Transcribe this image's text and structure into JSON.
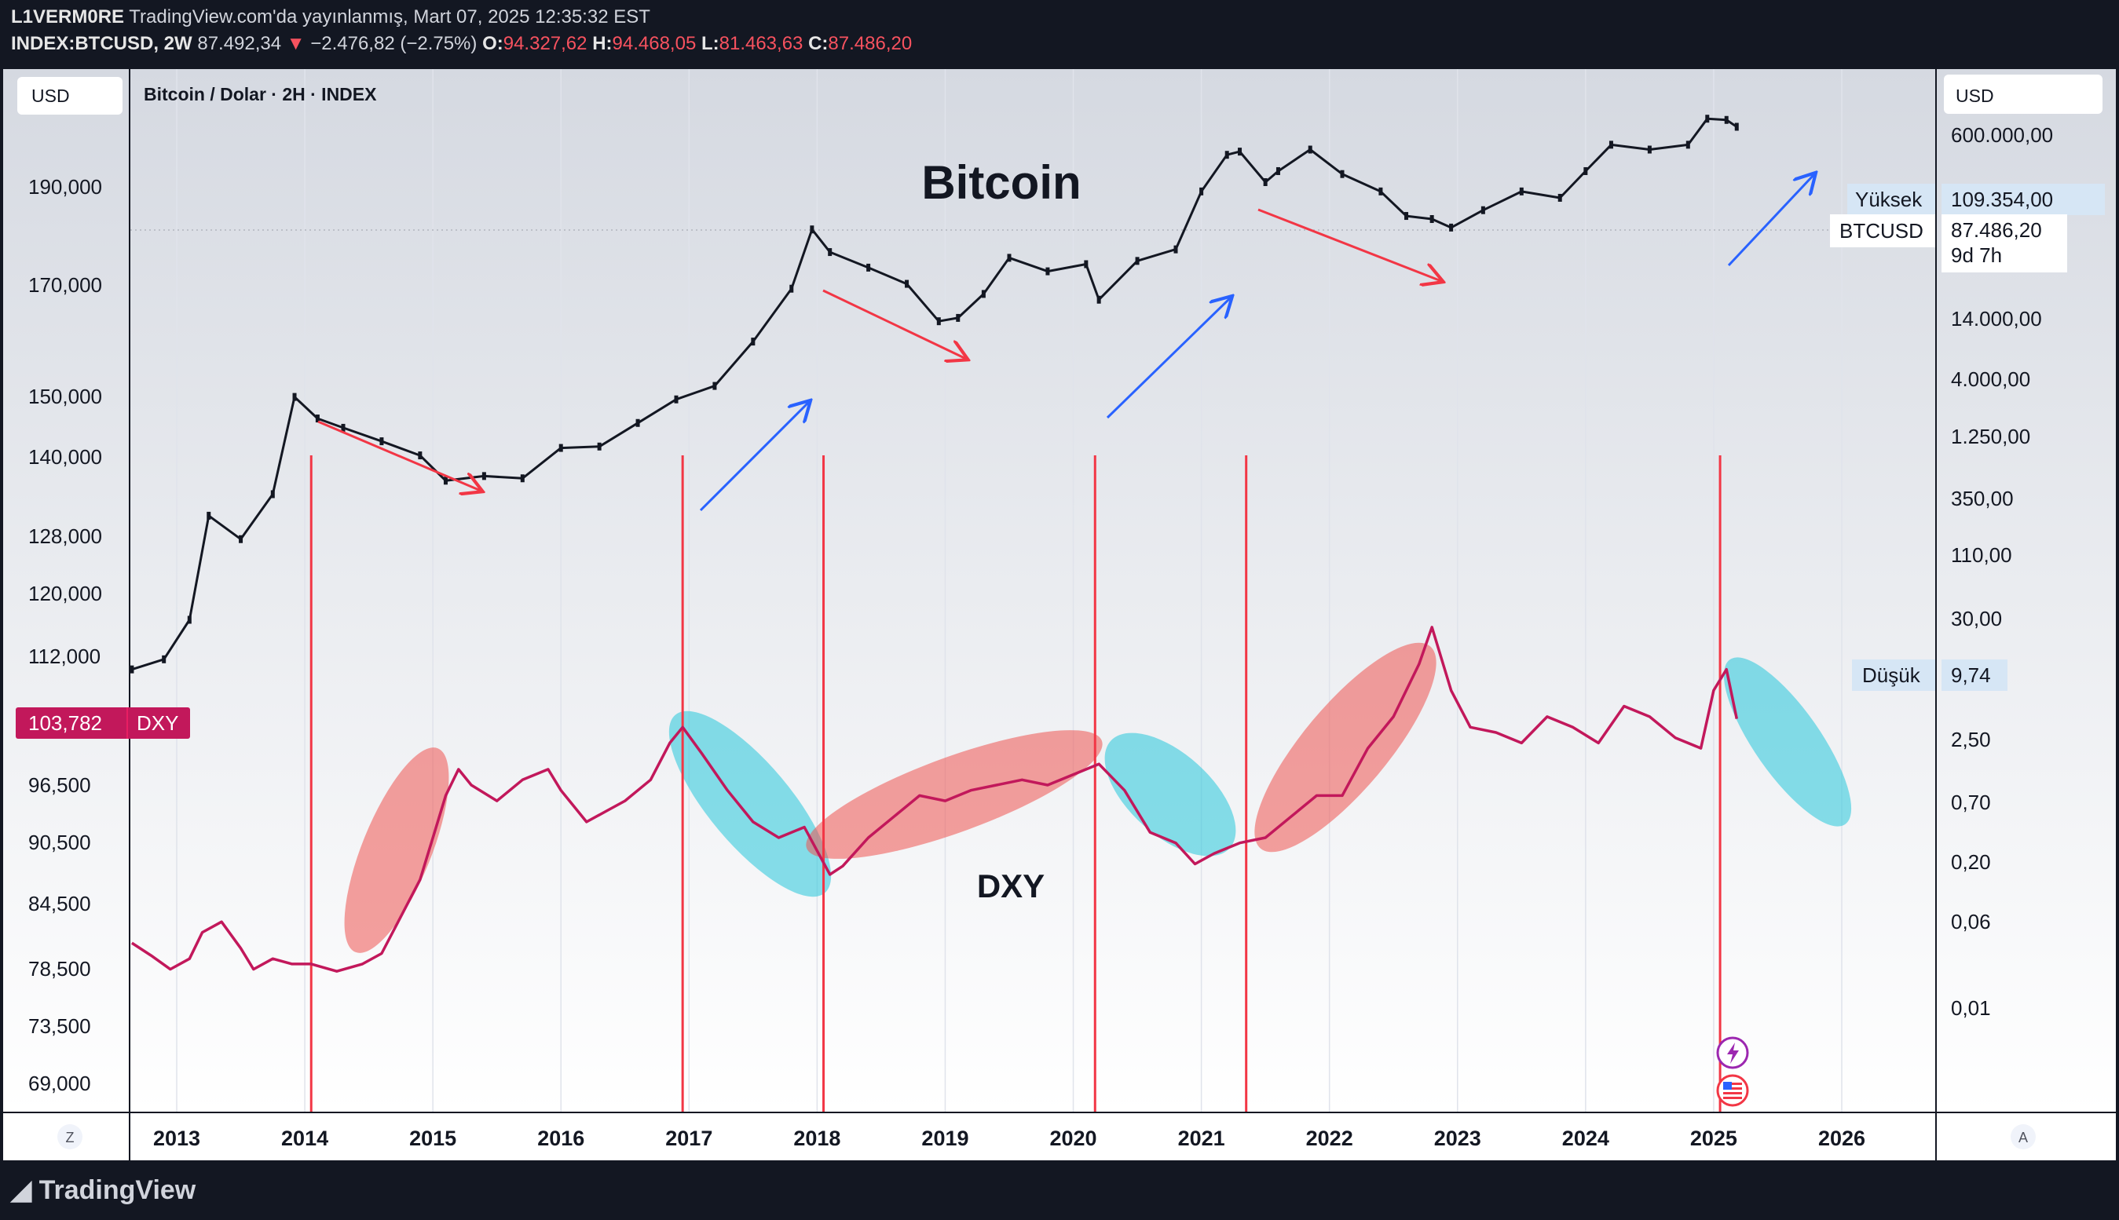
{
  "header": {
    "author": "L1VERM0RE",
    "published_text": "TradingView.com'da yayınlanmış, Mart 07, 2025 12:35:32 EST",
    "symbol": "INDEX:BTCUSD, 2W",
    "last": "87.492,34",
    "change_arrow": "▼",
    "change": "−2.476,82 (−2.75%)",
    "o_label": "O:",
    "o_value": "94.327,62",
    "h_label": "H:",
    "h_value": "94.468,05",
    "l_label": "L:",
    "l_value": "81.463,63",
    "c_label": "C:",
    "c_value": "87.486,20"
  },
  "chart_title_bar": "Bitcoin / Dolar · 2H · INDEX",
  "left_currency": "USD",
  "right_currency": "USD",
  "corner_left": "Z",
  "corner_right": "A",
  "branding": "TradingView",
  "colors": {
    "panel_bg": "#131722",
    "plot_bg_top": "#d5d9e1",
    "plot_bg_bottom": "#ffffff",
    "dxy": "#c2185b",
    "arrow_red": "#f23645",
    "arrow_blue": "#2962ff",
    "vline": "#f23645",
    "ellipse_red": "rgba(239,83,80,0.55)",
    "ellipse_cyan": "rgba(38,198,218,0.55)"
  },
  "chart_data": {
    "type": "line",
    "annotations": {
      "bitcoin": "Bitcoin",
      "dxy": "DXY"
    },
    "x_ticks": [
      "2013",
      "2014",
      "2015",
      "2016",
      "2017",
      "2018",
      "2019",
      "2020",
      "2021",
      "2022",
      "2023",
      "2024",
      "2025",
      "2026"
    ],
    "left_axis_ticks": [
      "190,000",
      "170,000",
      "150,000",
      "140,000",
      "128,000",
      "120,000",
      "112,000",
      "96,500",
      "90,500",
      "84,500",
      "78,500",
      "73,500",
      "69,000"
    ],
    "right_axis_ticks": [
      "600.000,00",
      "14.000,00",
      "4.000,00",
      "1.250,00",
      "350,00",
      "110,00",
      "30,00",
      "2,50",
      "0,70",
      "0,20",
      "0,06",
      "0,01"
    ],
    "dxy_badge": {
      "value": "103,782",
      "label": "DXY"
    },
    "high_label": {
      "text": "Yüksek",
      "value": "109.354,00"
    },
    "btc_label": {
      "symbol": "BTCUSD",
      "value": "87.486,20",
      "countdown": "9d 7h"
    },
    "low_label": {
      "text": "Düşük",
      "value": "9,74"
    },
    "series": [
      {
        "name": "BTCUSD",
        "x": [
          2012.65,
          2012.9,
          2013.1,
          2013.25,
          2013.5,
          2013.75,
          2013.92,
          2014.1,
          2014.3,
          2014.6,
          2014.9,
          2015.1,
          2015.4,
          2015.7,
          2016.0,
          2016.3,
          2016.6,
          2016.9,
          2017.2,
          2017.5,
          2017.8,
          2017.96,
          2018.1,
          2018.4,
          2018.7,
          2018.95,
          2019.1,
          2019.3,
          2019.5,
          2019.8,
          2020.1,
          2020.2,
          2020.5,
          2020.8,
          2021.0,
          2021.2,
          2021.3,
          2021.5,
          2021.6,
          2021.85,
          2022.1,
          2022.4,
          2022.6,
          2022.8,
          2022.95,
          2023.2,
          2023.5,
          2023.8,
          2024.0,
          2024.2,
          2024.5,
          2024.8,
          2024.95,
          2025.1,
          2025.18
        ],
        "y": [
          11,
          13,
          25,
          140,
          95,
          200,
          1000,
          700,
          600,
          480,
          380,
          250,
          270,
          260,
          430,
          440,
          650,
          960,
          1200,
          2500,
          6000,
          16000,
          11000,
          8500,
          6500,
          3500,
          3700,
          5500,
          10000,
          8000,
          9000,
          5000,
          9500,
          11500,
          30000,
          55000,
          58000,
          35000,
          42000,
          60000,
          40000,
          30000,
          20000,
          19000,
          16500,
          22000,
          30000,
          27000,
          42000,
          65000,
          60000,
          65000,
          100000,
          98000,
          87486
        ]
      },
      {
        "name": "DXY",
        "x": [
          2012.65,
          2012.8,
          2012.95,
          2013.1,
          2013.2,
          2013.35,
          2013.5,
          2013.6,
          2013.75,
          2013.9,
          2014.05,
          2014.25,
          2014.45,
          2014.6,
          2014.75,
          2014.9,
          2015.0,
          2015.1,
          2015.2,
          2015.3,
          2015.5,
          2015.7,
          2015.9,
          2016.0,
          2016.2,
          2016.35,
          2016.5,
          2016.7,
          2016.85,
          2016.95,
          2017.1,
          2017.3,
          2017.5,
          2017.7,
          2017.9,
          2018.1,
          2018.2,
          2018.4,
          2018.6,
          2018.8,
          2019.0,
          2019.2,
          2019.4,
          2019.6,
          2019.8,
          2020.0,
          2020.2,
          2020.4,
          2020.6,
          2020.8,
          2020.95,
          2021.1,
          2021.3,
          2021.5,
          2021.7,
          2021.9,
          2022.1,
          2022.3,
          2022.5,
          2022.7,
          2022.8,
          2022.95,
          2023.1,
          2023.3,
          2023.5,
          2023.7,
          2023.9,
          2024.1,
          2024.3,
          2024.5,
          2024.7,
          2024.9,
          2025.0,
          2025.1,
          2025.18
        ],
        "y": [
          82.5,
          81.3,
          80.0,
          81.0,
          83.5,
          84.5,
          82.0,
          80.0,
          81.0,
          80.5,
          80.5,
          79.8,
          80.5,
          81.5,
          85.0,
          88.5,
          92.5,
          96.5,
          99.0,
          97.5,
          96.0,
          98.0,
          99.0,
          97.0,
          94.0,
          95.0,
          96.0,
          98.0,
          101.5,
          103.0,
          100.5,
          97.0,
          94.0,
          92.5,
          93.5,
          89.0,
          89.8,
          92.5,
          94.5,
          96.5,
          96.0,
          97.0,
          97.5,
          98.0,
          97.5,
          98.5,
          99.5,
          97.0,
          93.0,
          92.0,
          90.0,
          91.0,
          92.0,
          92.5,
          94.5,
          96.5,
          96.5,
          101.0,
          104.0,
          109.0,
          112.5,
          106.5,
          103.0,
          102.5,
          101.5,
          104.0,
          103.0,
          101.5,
          105.0,
          104.0,
          102.0,
          101.0,
          106.5,
          108.5,
          103.8
        ]
      }
    ],
    "cycle_lines_x": [
      2014.05,
      2016.95,
      2018.05,
      2020.17,
      2021.35,
      2025.05
    ]
  }
}
